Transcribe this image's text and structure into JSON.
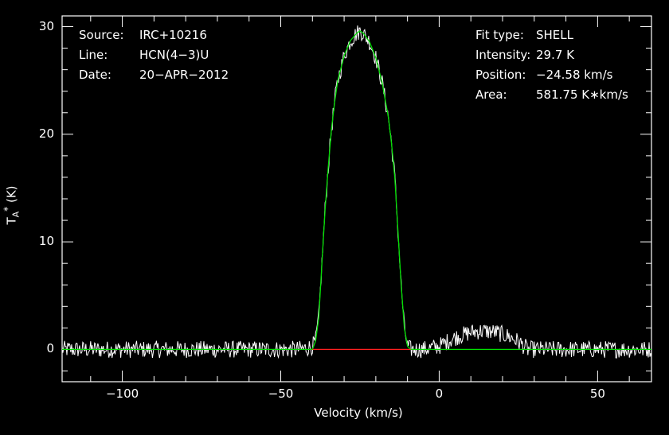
{
  "chart_data": {
    "type": "line",
    "xlabel": "Velocity (km/s)",
    "ylabel_main": "T",
    "ylabel_sub": "A",
    "ylabel_sup": "*",
    "ylabel_unit": "(K)",
    "xlim": [
      -119,
      67
    ],
    "ylim": [
      -3,
      31
    ],
    "xticks": [
      -100,
      -50,
      0,
      50
    ],
    "xtick_labels": [
      "−100",
      "−50",
      "0",
      "50"
    ],
    "yticks": [
      0,
      10,
      20,
      30
    ],
    "ytick_labels": [
      "0",
      "10",
      "20",
      "30"
    ],
    "grid": false,
    "info_left": [
      {
        "key": "Source:",
        "value": "IRC+10216"
      },
      {
        "key": "Line:",
        "value": "HCN(4−3)U"
      },
      {
        "key": "Date:",
        "value": "20−APR−2012"
      }
    ],
    "info_right": [
      {
        "key": "Fit type:",
        "value": "SHELL"
      },
      {
        "key": "Intensity:",
        "value": "29.7 K"
      },
      {
        "key": "Position:",
        "value": "−24.58 km/s"
      },
      {
        "key": "Area:",
        "value": "581.75 K∗km/s"
      }
    ],
    "series": [
      {
        "role": "observed",
        "color": "#ffffff",
        "x": [
          -119,
          -110,
          -100,
          -90,
          -80,
          -70,
          -60,
          -50,
          -45,
          -42,
          -40,
          -39,
          -38,
          -37,
          -36,
          -35,
          -34,
          -33,
          -32,
          -30,
          -28,
          -26,
          -25,
          -24,
          -22,
          -20,
          -18,
          -16,
          -15,
          -14,
          -13,
          -12,
          -11,
          -10,
          -9,
          -8,
          -5,
          0,
          3,
          5,
          8,
          10,
          12,
          15,
          18,
          20,
          22,
          24,
          26,
          28,
          30,
          40,
          50,
          60,
          67
        ],
        "y": [
          0,
          0,
          0,
          0,
          0,
          0,
          0,
          0,
          0,
          0.1,
          0.3,
          0.8,
          3,
          8,
          13,
          17,
          20.5,
          23,
          25,
          27.3,
          28.7,
          29.4,
          29.6,
          29.4,
          28.6,
          27.1,
          24.8,
          21.5,
          19,
          16,
          11,
          6,
          2,
          0.3,
          0,
          0,
          0,
          0.3,
          0.8,
          1.1,
          1.4,
          1.6,
          1.7,
          1.7,
          1.6,
          1.4,
          1.2,
          0.9,
          0.5,
          0,
          0,
          0,
          0,
          0,
          0
        ]
      },
      {
        "role": "fit",
        "color": "#00e000",
        "x": [
          -119,
          -40,
          -39,
          -38,
          -37,
          -36,
          -35,
          -34,
          -33,
          -32,
          -30,
          -28,
          -26,
          -25,
          -24,
          -22,
          -20,
          -18,
          -16,
          -15,
          -14,
          -13,
          -12,
          -11,
          -10,
          -9,
          67
        ],
        "y": [
          0,
          0,
          0.8,
          3,
          8,
          13,
          17,
          20.5,
          23,
          25,
          27.3,
          28.7,
          29.4,
          29.6,
          29.4,
          28.6,
          27.1,
          24.8,
          21.5,
          19,
          16,
          11,
          6,
          2,
          0.3,
          0,
          0
        ]
      },
      {
        "role": "baseline",
        "color": "#ff2020",
        "x": [
          -40,
          -9
        ],
        "y": [
          0,
          0
        ]
      }
    ]
  }
}
